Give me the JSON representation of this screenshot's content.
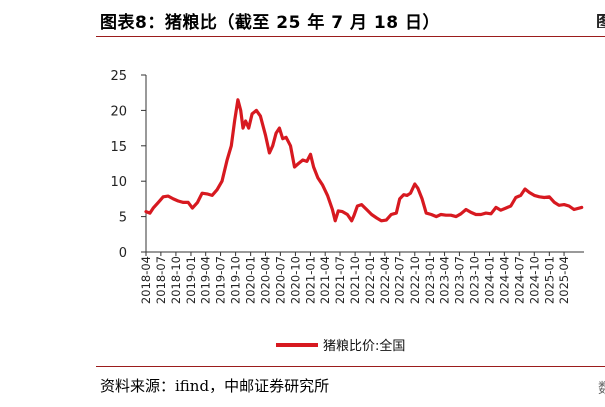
{
  "header": {
    "title": "图表8：猪粮比（截至 25 年 7 月 18 日）",
    "right_fragment": "图"
  },
  "footer": {
    "source": "资料来源：ifind，中邮证券研究所",
    "right_fragment": "数"
  },
  "colors": {
    "series": "#d71920",
    "axis": "#333333",
    "rule": "#9b1c1c"
  },
  "chart_data": {
    "type": "line",
    "title": "",
    "xlabel": "",
    "ylabel": "",
    "ylim": [
      0,
      25
    ],
    "yticks": [
      "0",
      "5",
      "10",
      "15",
      "20",
      "25"
    ],
    "xticks": [
      "2018-04",
      "2018-07",
      "2018-10",
      "2019-01",
      "2019-04",
      "2019-07",
      "2019-10",
      "2020-01",
      "2020-04",
      "2020-07",
      "2020-10",
      "2021-01",
      "2021-04",
      "2021-07",
      "2021-10",
      "2022-01",
      "2022-04",
      "2022-07",
      "2022-10",
      "2023-01",
      "2023-04",
      "2023-07",
      "2023-10",
      "2024-01",
      "2024-04",
      "2024-07",
      "2024-10",
      "2025-01",
      "2025-04"
    ],
    "x_range": [
      "2018-04-01",
      "2025-08-01"
    ],
    "grid": false,
    "legend_position": "bottom",
    "series": [
      {
        "name": "猪粮比价:全国",
        "points": [
          [
            "2018-04-01",
            5.7
          ],
          [
            "2018-04-25",
            5.5
          ],
          [
            "2018-05-15",
            6.2
          ],
          [
            "2018-06-15",
            7.0
          ],
          [
            "2018-07-15",
            7.8
          ],
          [
            "2018-08-15",
            7.9
          ],
          [
            "2018-09-15",
            7.5
          ],
          [
            "2018-10-15",
            7.2
          ],
          [
            "2018-11-15",
            7.0
          ],
          [
            "2018-12-15",
            7.0
          ],
          [
            "2019-01-10",
            6.2
          ],
          [
            "2019-02-10",
            7.0
          ],
          [
            "2019-03-10",
            8.3
          ],
          [
            "2019-04-10",
            8.2
          ],
          [
            "2019-05-10",
            8.0
          ],
          [
            "2019-06-10",
            8.8
          ],
          [
            "2019-07-10",
            10.0
          ],
          [
            "2019-08-10",
            13.0
          ],
          [
            "2019-09-05",
            15.0
          ],
          [
            "2019-09-25",
            18.5
          ],
          [
            "2019-10-15",
            21.5
          ],
          [
            "2019-11-01",
            20.0
          ],
          [
            "2019-11-15",
            17.5
          ],
          [
            "2019-12-01",
            18.5
          ],
          [
            "2019-12-20",
            17.5
          ],
          [
            "2020-01-10",
            19.5
          ],
          [
            "2020-02-05",
            20.0
          ],
          [
            "2020-03-01",
            19.2
          ],
          [
            "2020-04-01",
            16.5
          ],
          [
            "2020-04-25",
            14.0
          ],
          [
            "2020-05-15",
            15.0
          ],
          [
            "2020-06-05",
            16.8
          ],
          [
            "2020-06-25",
            17.5
          ],
          [
            "2020-07-15",
            16.0
          ],
          [
            "2020-08-05",
            16.2
          ],
          [
            "2020-09-01",
            15.0
          ],
          [
            "2020-09-25",
            12.0
          ],
          [
            "2020-10-20",
            12.5
          ],
          [
            "2020-11-15",
            13.0
          ],
          [
            "2020-12-10",
            12.8
          ],
          [
            "2021-01-01",
            13.8
          ],
          [
            "2021-01-20",
            12.0
          ],
          [
            "2021-02-15",
            10.5
          ],
          [
            "2021-03-15",
            9.5
          ],
          [
            "2021-04-15",
            8.0
          ],
          [
            "2021-05-15",
            6.0
          ],
          [
            "2021-06-01",
            4.4
          ],
          [
            "2021-06-20",
            5.8
          ],
          [
            "2021-07-15",
            5.7
          ],
          [
            "2021-08-15",
            5.3
          ],
          [
            "2021-09-10",
            4.4
          ],
          [
            "2021-09-25",
            5.2
          ],
          [
            "2021-10-15",
            6.5
          ],
          [
            "2021-11-10",
            6.7
          ],
          [
            "2021-12-10",
            6.0
          ],
          [
            "2022-01-10",
            5.3
          ],
          [
            "2022-02-10",
            4.8
          ],
          [
            "2022-03-10",
            4.4
          ],
          [
            "2022-04-10",
            4.5
          ],
          [
            "2022-05-10",
            5.3
          ],
          [
            "2022-06-10",
            5.5
          ],
          [
            "2022-07-01",
            7.5
          ],
          [
            "2022-07-25",
            8.1
          ],
          [
            "2022-08-15",
            8.0
          ],
          [
            "2022-09-05",
            8.3
          ],
          [
            "2022-10-01",
            9.6
          ],
          [
            "2022-10-20",
            9.0
          ],
          [
            "2022-11-15",
            7.5
          ],
          [
            "2022-12-10",
            5.5
          ],
          [
            "2023-01-10",
            5.3
          ],
          [
            "2023-02-10",
            5.0
          ],
          [
            "2023-03-10",
            5.3
          ],
          [
            "2023-04-10",
            5.2
          ],
          [
            "2023-05-10",
            5.2
          ],
          [
            "2023-06-10",
            5.0
          ],
          [
            "2023-07-10",
            5.4
          ],
          [
            "2023-08-10",
            6.0
          ],
          [
            "2023-09-10",
            5.6
          ],
          [
            "2023-10-10",
            5.3
          ],
          [
            "2023-11-10",
            5.3
          ],
          [
            "2023-12-10",
            5.5
          ],
          [
            "2024-01-10",
            5.4
          ],
          [
            "2024-02-10",
            6.3
          ],
          [
            "2024-03-10",
            5.9
          ],
          [
            "2024-04-10",
            6.2
          ],
          [
            "2024-05-10",
            6.5
          ],
          [
            "2024-06-10",
            7.7
          ],
          [
            "2024-07-10",
            8.0
          ],
          [
            "2024-08-05",
            8.9
          ],
          [
            "2024-09-01",
            8.4
          ],
          [
            "2024-10-01",
            8.0
          ],
          [
            "2024-11-01",
            7.8
          ],
          [
            "2024-12-01",
            7.7
          ],
          [
            "2025-01-01",
            7.8
          ],
          [
            "2025-02-01",
            7.0
          ],
          [
            "2025-03-01",
            6.6
          ],
          [
            "2025-04-01",
            6.7
          ],
          [
            "2025-05-01",
            6.5
          ],
          [
            "2025-06-01",
            6.0
          ],
          [
            "2025-07-18",
            6.3
          ]
        ]
      }
    ]
  }
}
